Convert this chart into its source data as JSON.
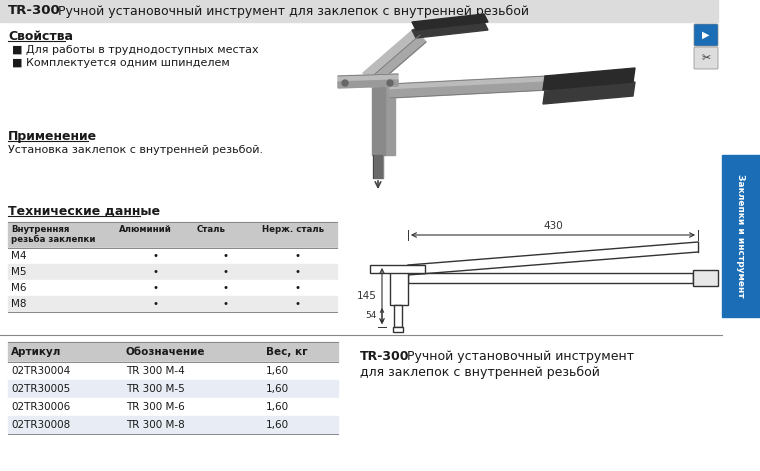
{
  "title_bold": "TR-300",
  "title_rest": " Ручной установочный инструмент для заклепок с внутренней резьбой",
  "section_svoystva": "Свойства",
  "bullet1": "Для работы в труднодоступных местах",
  "bullet2": "Комплектуется одним шпинделем",
  "section_primenenie": "Применение",
  "primenenie_text": "Установка заклепок с внутренней резьбой.",
  "section_techdata": "Технические данные",
  "table_headers": [
    "Внутренняя\nрезьба заклепки",
    "Алюминий",
    "Сталь",
    "Нерж. сталь"
  ],
  "table_rows": [
    [
      "М4",
      "•",
      "•",
      "•"
    ],
    [
      "М5",
      "•",
      "•",
      "•"
    ],
    [
      "М6",
      "•",
      "•",
      "•"
    ],
    [
      "М8",
      "•",
      "•",
      "•"
    ]
  ],
  "bottom_table_headers": [
    "Артикул",
    "Обозначение",
    "Вес, кг"
  ],
  "bottom_table_rows": [
    [
      "02TR30004",
      "TR 300 M-4",
      "1,60"
    ],
    [
      "02TR30005",
      "TR 300 M-5",
      "1,60"
    ],
    [
      "02TR30006",
      "TR 300 M-6",
      "1,60"
    ],
    [
      "02TR30008",
      "TR 300 M-8",
      "1,60"
    ]
  ],
  "bottom_right_bold": "TR-300",
  "dim_430": "430",
  "dim_145": "145",
  "dim_54": "54",
  "sidebar_text": "Заклепки и инструмент",
  "sidebar_color": "#1B6DB5",
  "bg_color": "#FFFFFF",
  "header_bg": "#DCDCDC",
  "row_alt_color": "#EBEBEB",
  "bottom_row_alt": "#E8EDF5",
  "text_color": "#1a1a1a",
  "border_color": "#AAAAAA",
  "table_header_color": "#C8C8C8"
}
